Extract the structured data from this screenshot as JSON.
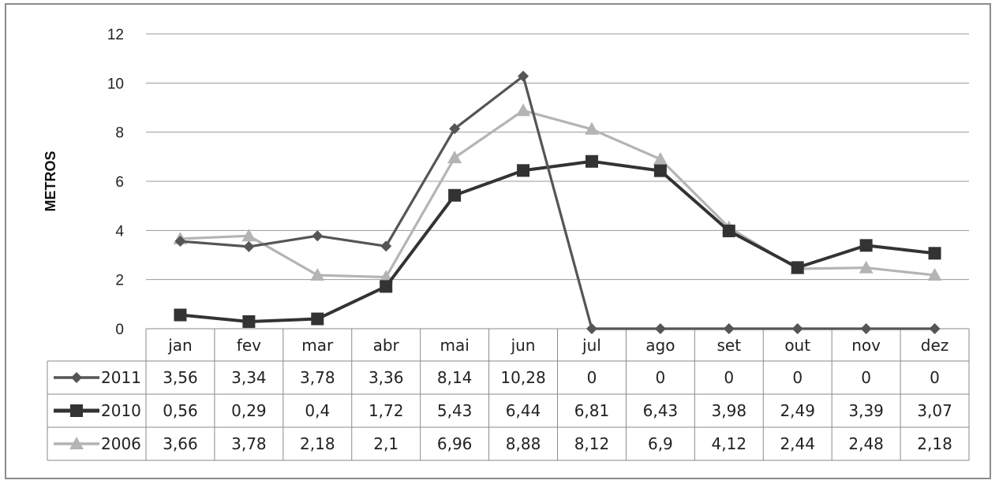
{
  "chart_data": {
    "type": "line",
    "title": "",
    "xlabel": "",
    "ylabel": "METROS",
    "ylim": [
      0,
      12
    ],
    "yticks": [
      0,
      2,
      4,
      6,
      8,
      10,
      12
    ],
    "grid": true,
    "legend": "data-table",
    "categories": [
      "jan",
      "fev",
      "mar",
      "abr",
      "mai",
      "jun",
      "jul",
      "ago",
      "set",
      "out",
      "nov",
      "dez"
    ],
    "series": [
      {
        "name": "2011",
        "color": "#555555",
        "marker": "diamond",
        "values": [
          3.56,
          3.34,
          3.78,
          3.36,
          8.14,
          10.28,
          0,
          0,
          0,
          0,
          0,
          0
        ],
        "labels": [
          "3,56",
          "3,34",
          "3,78",
          "3,36",
          "8,14",
          "10,28",
          "0",
          "0",
          "0",
          "0",
          "0",
          "0"
        ]
      },
      {
        "name": "2010",
        "color": "#333333",
        "marker": "square",
        "values": [
          0.56,
          0.29,
          0.4,
          1.72,
          5.43,
          6.44,
          6.81,
          6.43,
          3.98,
          2.49,
          3.39,
          3.07
        ],
        "labels": [
          "0,56",
          "0,29",
          "0,4",
          "1,72",
          "5,43",
          "6,44",
          "6,81",
          "6,43",
          "3,98",
          "2,49",
          "3,39",
          "3,07"
        ]
      },
      {
        "name": "2006",
        "color": "#b4b4b4",
        "marker": "triangle",
        "values": [
          3.66,
          3.78,
          2.18,
          2.1,
          6.96,
          8.88,
          8.12,
          6.9,
          4.12,
          2.44,
          2.48,
          2.18
        ],
        "labels": [
          "3,66",
          "3,78",
          "2,18",
          "2,1",
          "6,96",
          "8,88",
          "8,12",
          "6,9",
          "4,12",
          "2,44",
          "2,48",
          "2,18"
        ]
      }
    ]
  }
}
